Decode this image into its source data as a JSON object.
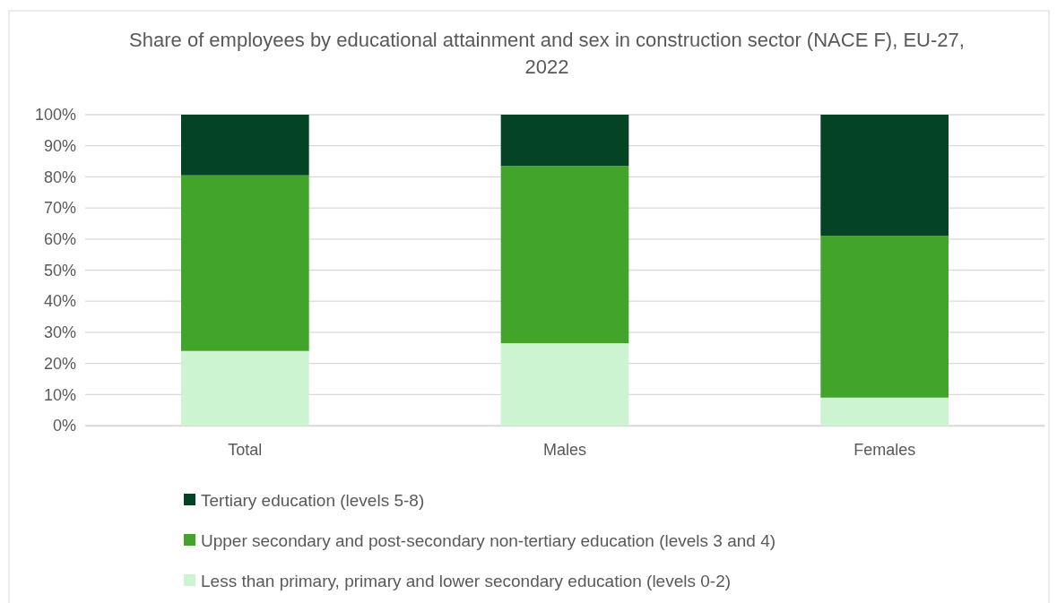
{
  "chart_data": {
    "type": "bar",
    "stacked": true,
    "title": "Share of employees by educational attainment and sex in construction sector (NACE F), EU-27, 2022",
    "categories": [
      "Total",
      "Males",
      "Females"
    ],
    "series": [
      {
        "name": "Less than primary, primary and lower secondary education (levels 0-2)",
        "color": "#cdf4d0",
        "values": [
          24,
          26.5,
          9
        ]
      },
      {
        "name": "Upper secondary and post-secondary non-tertiary education (levels 3 and 4)",
        "color": "#43a42c",
        "values": [
          56.5,
          57,
          52
        ]
      },
      {
        "name": "Tertiary education (levels 5-8)",
        "color": "#044323",
        "values": [
          19.5,
          16.5,
          39
        ]
      }
    ],
    "ylim": [
      0,
      100
    ],
    "yticks": [
      {
        "value": 0,
        "label": "0%"
      },
      {
        "value": 10,
        "label": "10%"
      },
      {
        "value": 20,
        "label": "20%"
      },
      {
        "value": 30,
        "label": "30%"
      },
      {
        "value": 40,
        "label": "40%"
      },
      {
        "value": 50,
        "label": "50%"
      },
      {
        "value": 60,
        "label": "60%"
      },
      {
        "value": 70,
        "label": "70%"
      },
      {
        "value": 80,
        "label": "80%"
      },
      {
        "value": 90,
        "label": "90%"
      },
      {
        "value": 100,
        "label": "100%"
      }
    ],
    "grid": "y",
    "legend": "bottom"
  }
}
